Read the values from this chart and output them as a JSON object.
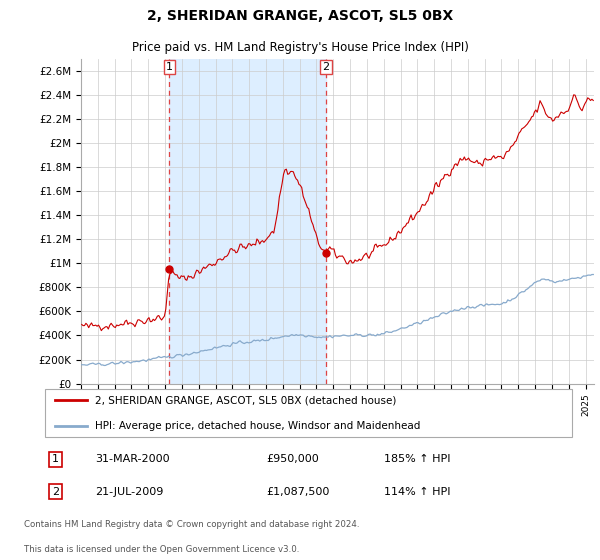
{
  "title": "2, SHERIDAN GRANGE, ASCOT, SL5 0BX",
  "subtitle": "Price paid vs. HM Land Registry's House Price Index (HPI)",
  "legend_line1": "2, SHERIDAN GRANGE, ASCOT, SL5 0BX (detached house)",
  "legend_line2": "HPI: Average price, detached house, Windsor and Maidenhead",
  "table_row1": [
    "1",
    "31-MAR-2000",
    "£950,000",
    "185% ↑ HPI"
  ],
  "table_row2": [
    "2",
    "21-JUL-2009",
    "£1,087,500",
    "114% ↑ HPI"
  ],
  "footnote1": "Contains HM Land Registry data © Crown copyright and database right 2024.",
  "footnote2": "This data is licensed under the Open Government Licence v3.0.",
  "red_line_color": "#CC0000",
  "blue_line_color": "#88AACC",
  "fill_color": "#DDEEFF",
  "marker_color": "#CC0000",
  "vline_color": "#DD4444",
  "ylim": [
    0,
    2700000
  ],
  "yticks": [
    0,
    200000,
    400000,
    600000,
    800000,
    1000000,
    1200000,
    1400000,
    1600000,
    1800000,
    2000000,
    2200000,
    2400000,
    2600000
  ],
  "ytick_labels": [
    "£0",
    "£200K",
    "£400K",
    "£600K",
    "£800K",
    "£1M",
    "£1.2M",
    "£1.4M",
    "£1.6M",
    "£1.8M",
    "£2M",
    "£2.2M",
    "£2.4M",
    "£2.6M"
  ],
  "transaction1_x": 2000.25,
  "transaction1_y": 950000,
  "transaction2_x": 2009.55,
  "transaction2_y": 1087500,
  "xmin": 1995,
  "xmax": 2025.5
}
